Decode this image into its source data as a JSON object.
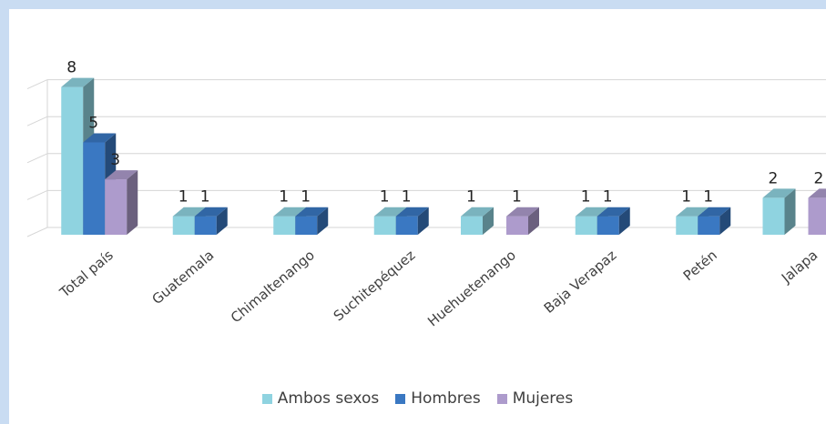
{
  "chart_data": {
    "type": "bar",
    "title": "",
    "xlabel": "",
    "ylabel": "",
    "ylim": [
      0,
      8
    ],
    "grid": true,
    "legend_position": "bottom",
    "categories": [
      "Total país",
      "Guatemala",
      "Chimaltenango",
      "Suchitepéquez",
      "Huehuetenango",
      "Baja Verapaz",
      "Petén",
      "Jalapa"
    ],
    "series": [
      {
        "name": "Ambos sexos",
        "color": "#8fd3e0",
        "values": [
          8,
          1,
          1,
          1,
          1,
          1,
          1,
          2
        ]
      },
      {
        "name": "Hombres",
        "color": "#3a78c2",
        "values": [
          5,
          1,
          1,
          1,
          null,
          1,
          1,
          null
        ]
      },
      {
        "name": "Mujeres",
        "color": "#ad9bcc",
        "values": [
          3,
          null,
          null,
          null,
          1,
          null,
          null,
          2
        ]
      }
    ],
    "data_labels": [
      [
        "8",
        "1",
        "1",
        "1",
        "1",
        "1",
        "1",
        "2"
      ],
      [
        "5",
        "1",
        "1",
        "1",
        "",
        "1",
        "1",
        ""
      ],
      [
        "3",
        "",
        "",
        "",
        "1",
        "",
        "",
        "2"
      ]
    ]
  }
}
